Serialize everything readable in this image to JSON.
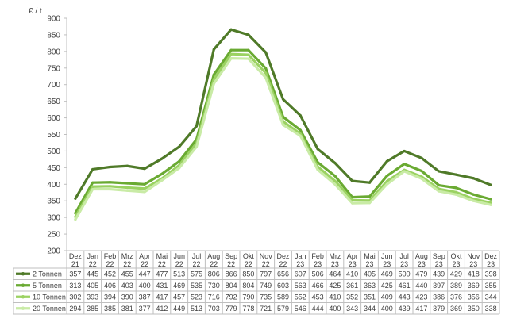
{
  "chart_data": {
    "type": "line",
    "ylabel": "€ / t",
    "ylim": [
      200,
      900
    ],
    "ytick_step": 50,
    "grid": false,
    "legend": "data-table-left",
    "categories": [
      [
        "Dez",
        "21"
      ],
      [
        "Jan",
        "22"
      ],
      [
        "Feb",
        "22"
      ],
      [
        "Mrz",
        "22"
      ],
      [
        "Apr",
        "22"
      ],
      [
        "Mai",
        "22"
      ],
      [
        "Jun",
        "22"
      ],
      [
        "Jul",
        "22"
      ],
      [
        "Aug",
        "22"
      ],
      [
        "Sep",
        "22"
      ],
      [
        "Okt",
        "22"
      ],
      [
        "Nov",
        "22"
      ],
      [
        "Dez",
        "22"
      ],
      [
        "Jan",
        "23"
      ],
      [
        "Feb",
        "23"
      ],
      [
        "Mrz",
        "23"
      ],
      [
        "Apr",
        "23"
      ],
      [
        "Mai",
        "23"
      ],
      [
        "Jun",
        "23"
      ],
      [
        "Jul",
        "23"
      ],
      [
        "Aug",
        "23"
      ],
      [
        "Sep",
        "23"
      ],
      [
        "Okt",
        "23"
      ],
      [
        "Nov",
        "23"
      ],
      [
        "Dez",
        "23"
      ]
    ],
    "series": [
      {
        "name": "2 Tonnen",
        "color": "#4f7a28",
        "values": [
          357,
          445,
          452,
          455,
          447,
          477,
          513,
          575,
          806,
          866,
          850,
          797,
          656,
          607,
          506,
          464,
          410,
          405,
          469,
          500,
          479,
          439,
          429,
          418,
          398
        ]
      },
      {
        "name": "5 Tonnen",
        "color": "#6aaa32",
        "values": [
          313,
          405,
          406,
          403,
          400,
          431,
          469,
          535,
          730,
          804,
          804,
          749,
          603,
          563,
          466,
          425,
          361,
          363,
          425,
          461,
          440,
          397,
          389,
          369,
          355
        ]
      },
      {
        "name": "10 Tonnen",
        "color": "#9bd262",
        "values": [
          302,
          393,
          394,
          390,
          387,
          417,
          457,
          523,
          716,
          792,
          790,
          735,
          589,
          552,
          453,
          410,
          352,
          351,
          409,
          443,
          423,
          386,
          376,
          356,
          344
        ]
      },
      {
        "name": "20 Tonnen",
        "color": "#c9eba6",
        "values": [
          294,
          385,
          385,
          381,
          377,
          412,
          449,
          513,
          703,
          779,
          778,
          721,
          579,
          546,
          444,
          400,
          343,
          344,
          400,
          439,
          417,
          379,
          369,
          350,
          338
        ]
      }
    ]
  }
}
